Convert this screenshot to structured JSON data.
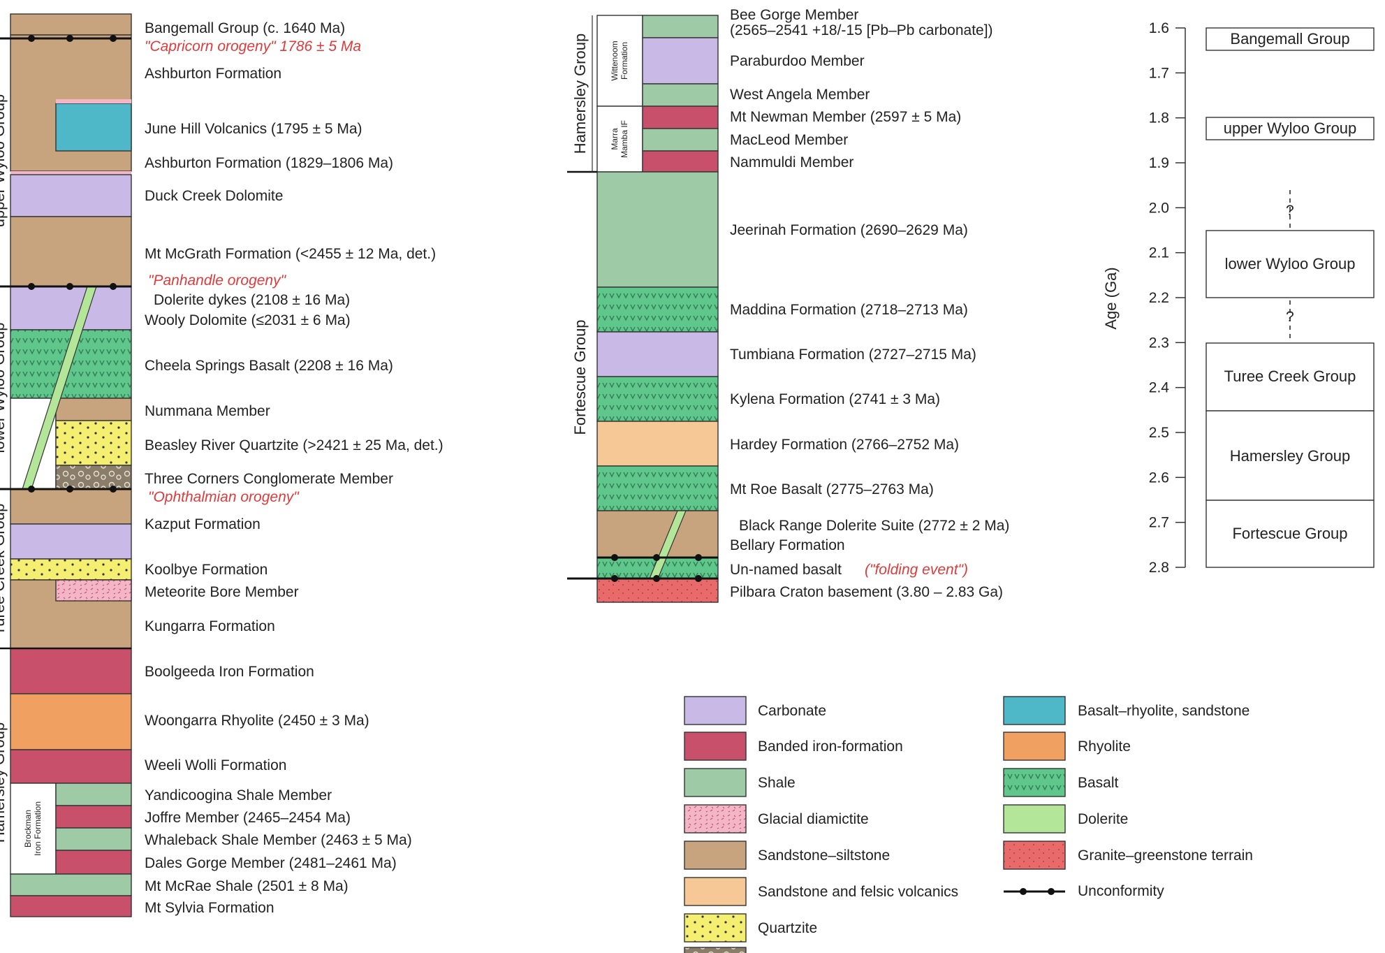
{
  "colors": {
    "carbonate": "#c8b9e6",
    "bif": "#c8506a",
    "shale": "#9fcaa6",
    "glacial": "#f2b6c6",
    "sandstone": "#c8a47e",
    "sandfelsic": "#f6c896",
    "quartzite": "#f4ef70",
    "conglomerate": "#8a7d6a",
    "basaltrhyolite": "#4fb8c8",
    "rhyolite": "#f0a060",
    "basalt": "#5fc68c",
    "dolerite": "#b4e69a",
    "granite": "#e86a6a",
    "white": "#ffffff",
    "annotation_red": "#e03a3a"
  },
  "left_column": {
    "group_labels": [
      "upper Wyloo Group",
      "lower Wyloo Group",
      "Turee Creek Group",
      "Hamersley Group"
    ],
    "sub_label": [
      "Brockman",
      "Iron Formation"
    ],
    "units": [
      {
        "text": "Bangemall Group (c. 1640 Ma)"
      },
      {
        "text": "\"Capricorn orogeny\" 1786 ± 5 Ma",
        "red": true
      },
      {
        "text": "Ashburton Formation"
      },
      {
        "text": "June Hill Volcanics (1795 ± 5 Ma)"
      },
      {
        "text": "Ashburton Formation (1829–1806 Ma)"
      },
      {
        "text": "Duck Creek Dolomite"
      },
      {
        "text": "Mt McGrath Formation (<2455 ± 12 Ma, det.)"
      },
      {
        "text": "\"Panhandle orogeny\"",
        "red": true
      },
      {
        "text": "Dolerite dykes (2108 ± 16 Ma)"
      },
      {
        "text": "Wooly Dolomite (≤2031 ± 6 Ma)"
      },
      {
        "text": "Cheela Springs Basalt (2208 ± 16 Ma)"
      },
      {
        "text": "Nummana Member"
      },
      {
        "text": "Beasley River Quartzite (>2421 ± 25 Ma, det.)"
      },
      {
        "text": "Three Corners Conglomerate Member"
      },
      {
        "text": "\"Ophthalmian orogeny\"",
        "red": true
      },
      {
        "text": "Kazput Formation"
      },
      {
        "text": "Koolbye Formation"
      },
      {
        "text": "Meteorite Bore Member"
      },
      {
        "text": "Kungarra Formation"
      },
      {
        "text": "Boolgeeda Iron Formation"
      },
      {
        "text": "Woongarra Rhyolite (2450 ± 3 Ma)"
      },
      {
        "text": "Weeli Wolli Formation"
      },
      {
        "text": "Yandicoogina Shale Member"
      },
      {
        "text": "Joffre Member (2465–2454 Ma)"
      },
      {
        "text": "Whaleback Shale Member (2463 ± 5 Ma)"
      },
      {
        "text": "Dales Gorge Member (2481–2461 Ma)"
      },
      {
        "text": "Mt McRae Shale (2501 ± 8 Ma)"
      },
      {
        "text": "Mt Sylvia Formation"
      }
    ]
  },
  "middle_column": {
    "group_labels": [
      "Hamersley Group",
      "Fortescue Group"
    ],
    "sub_labels": {
      "wittenoom": [
        "Wittenoom",
        "Formation"
      ],
      "marra": [
        "Marra",
        "Mamba IF"
      ]
    },
    "units": [
      {
        "text": "Bee Gorge Member"
      },
      {
        "text": "(2565–2541 +18/-15 [Pb–Pb carbonate])"
      },
      {
        "text": "Paraburdoo Member"
      },
      {
        "text": "West Angela Member"
      },
      {
        "text": "Mt Newman Member (2597 ± 5 Ma)"
      },
      {
        "text": "MacLeod Member"
      },
      {
        "text": "Nammuldi Member"
      },
      {
        "text": "Jeerinah Formation (2690–2629 Ma)"
      },
      {
        "text": "Maddina Formation (2718–2713 Ma)"
      },
      {
        "text": "Tumbiana Formation (2727–2715 Ma)"
      },
      {
        "text": "Kylena Formation (2741 ± 3 Ma)"
      },
      {
        "text": "Hardey Formation (2766–2752 Ma)"
      },
      {
        "text": "Mt Roe Basalt (2775–2763 Ma)"
      },
      {
        "text": "Black Range Dolerite Suite (2772 ± 2 Ma)"
      },
      {
        "text": "Bellary Formation"
      },
      {
        "text": "Un-named basalt"
      },
      {
        "text": "(\"folding event\")",
        "red": true
      },
      {
        "text": "Pilbara Craton basement (3.80 – 2.83 Ga)"
      }
    ]
  },
  "age_scale": {
    "axis_label": "Age (Ga)",
    "ticks": [
      "1.6",
      "1.7",
      "1.8",
      "1.9",
      "2.0",
      "2.1",
      "2.2",
      "2.3",
      "2.4",
      "2.5",
      "2.6",
      "2.7",
      "2.8"
    ],
    "groups": [
      "Bangemall Group",
      "upper Wyloo Group",
      "lower Wyloo Group",
      "Turee Creek Group",
      "Hamersley Group",
      "Fortescue Group"
    ],
    "question_mark": "?"
  },
  "legend": {
    "items": [
      {
        "label": "Carbonate",
        "swatch": "carbonate"
      },
      {
        "label": "Banded iron-formation",
        "swatch": "bif"
      },
      {
        "label": "Shale",
        "swatch": "shale"
      },
      {
        "label": "Glacial diamictite",
        "swatch": "glacial"
      },
      {
        "label": "Sandstone–siltstone",
        "swatch": "sandstone"
      },
      {
        "label": "Sandstone and felsic volcanics",
        "swatch": "sandfelsic"
      },
      {
        "label": "Quartzite",
        "swatch": "quartzite"
      },
      {
        "label": "Basalt–rhyolite, sandstone",
        "swatch": "basaltrhyolite"
      },
      {
        "label": "Rhyolite",
        "swatch": "rhyolite"
      },
      {
        "label": "Basalt",
        "swatch": "basalt"
      },
      {
        "label": "Dolerite",
        "swatch": "dolerite"
      },
      {
        "label": "Granite–greenstone terrain",
        "swatch": "granite"
      },
      {
        "label": "Unconformity",
        "swatch": "unconformity"
      }
    ]
  }
}
